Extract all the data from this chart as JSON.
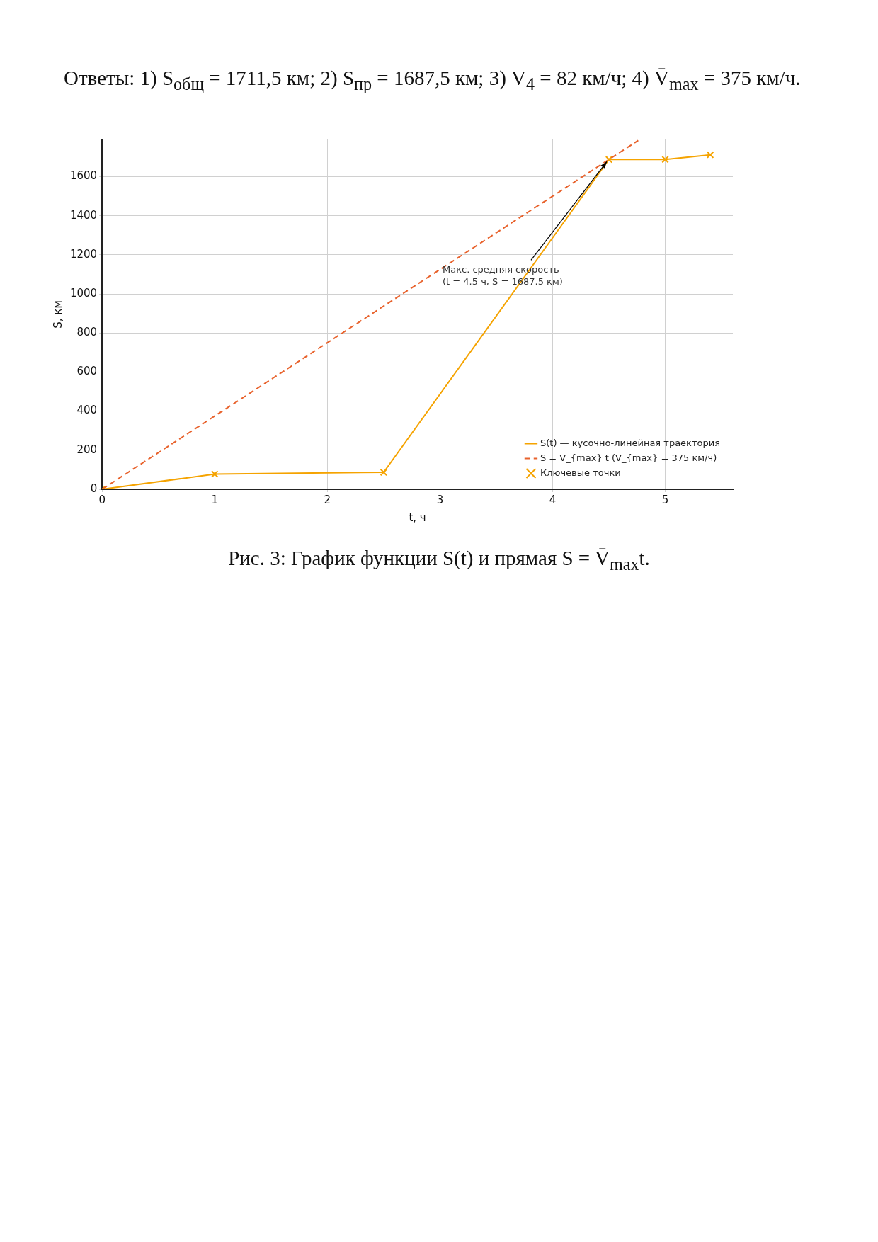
{
  "chart_data": {
    "type": "line",
    "title": "Ответы: 1) S$_{общ}$ = 1711,5 км; 2) S$_{пр}$ = 1687,5 км; 3) V$_{4}$ = 82 км/ч; 4) V̄$_{max}$ = 375 км/ч.",
    "xlabel": "t, ч",
    "ylabel": "S, км",
    "xlim": [
      0,
      5.6
    ],
    "xticks": [
      0,
      1,
      2,
      3,
      4,
      5
    ],
    "ylim": [
      0,
      1790
    ],
    "yticks": [
      0,
      200,
      400,
      600,
      800,
      1000,
      1200,
      1400,
      1600
    ],
    "series": [
      {
        "name": "S(t) — кусочно-линейная траектория",
        "type": "line",
        "color": "#f5a300",
        "marker": "none",
        "line_style": "solid",
        "x": [
          0,
          1,
          2.5,
          4.5,
          5,
          5.4
        ],
        "values": [
          0,
          78,
          87,
          1687.5,
          1687.5,
          1711.5
        ]
      },
      {
        "name": "S = V_{max} t (V_{max} = 375 км/ч)",
        "type": "line",
        "color": "#e8622c",
        "marker": "none",
        "line_style": "dashed",
        "x": [
          0,
          4.76
        ],
        "values": [
          0,
          1785
        ]
      },
      {
        "name": "Ключевые точки",
        "type": "scatter",
        "color": "#f5a300",
        "marker": "cross",
        "x": [
          0,
          1,
          2.5,
          4.5,
          5,
          5.4
        ],
        "values": [
          0,
          78,
          87,
          1687.5,
          1687.5,
          1711.5
        ]
      }
    ],
    "annotations": [
      {
        "text": "Макс. средняя скорость\n(t = 4.5 ч, S = 1687.5 км)",
        "x": 4.5,
        "y": 1687.5
      },
      "Рис. 3: График функции S(t) и прямая S = V̄$_{max}$t."
    ],
    "grid": true,
    "legend": "bottom right"
  }
}
